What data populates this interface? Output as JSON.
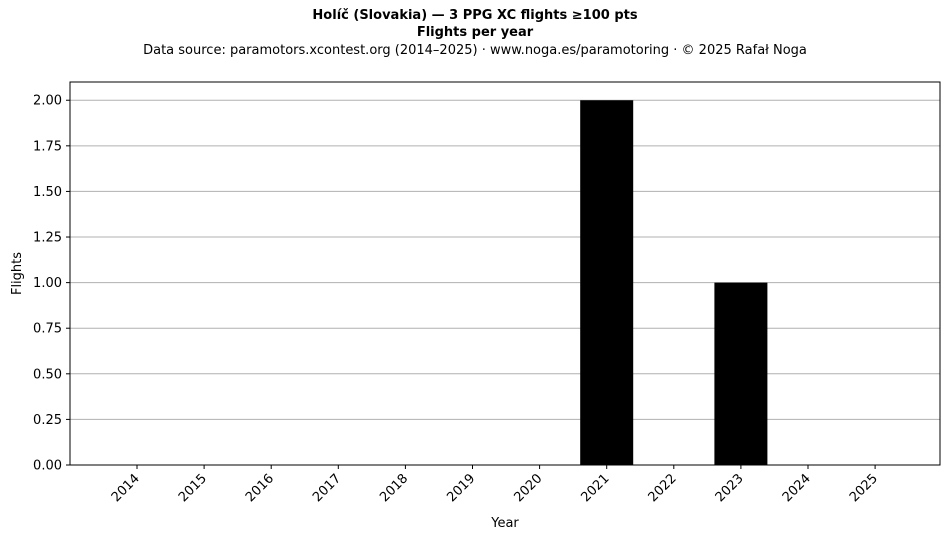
{
  "chart_data": {
    "type": "bar",
    "title": "Holíč (Slovakia)  —  3 PPG XC flights ≥100 pts",
    "subtitle": "Flights per year",
    "source_note": "Data source: paramotors.xcontest.org (2014–2025)  ·  www.noga.es/paramotoring  ·  © 2025 Rafał Noga",
    "xlabel": "Year",
    "ylabel": "Flights",
    "categories": [
      "2014",
      "2015",
      "2016",
      "2017",
      "2018",
      "2019",
      "2020",
      "2021",
      "2022",
      "2023",
      "2024",
      "2025"
    ],
    "values": [
      0,
      0,
      0,
      0,
      0,
      0,
      0,
      2,
      0,
      1,
      0,
      0
    ],
    "ylim": [
      0,
      2.1
    ],
    "yticks": [
      "0.00",
      "0.25",
      "0.50",
      "0.75",
      "1.00",
      "1.25",
      "1.50",
      "1.75",
      "2.00"
    ],
    "grid": "horizontal",
    "bar_color": "#000000",
    "grid_color": "#b0b0b0"
  }
}
